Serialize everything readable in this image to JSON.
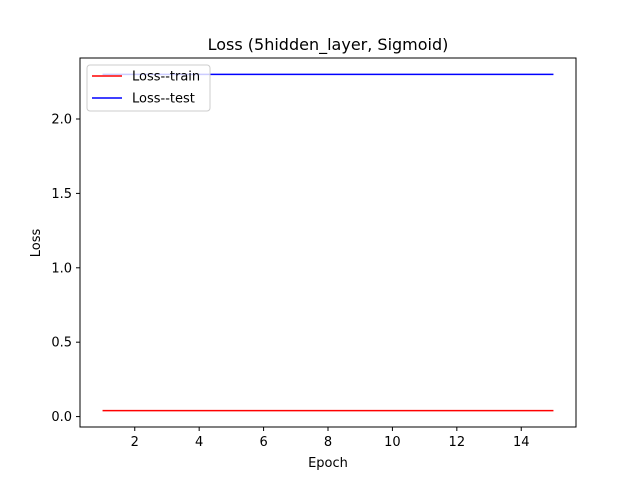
{
  "chart_data": {
    "type": "line",
    "title": "Loss (5hidden_layer, Sigmoid)",
    "xlabel": "Epoch",
    "ylabel": "Loss",
    "xlim": [
      0.3,
      15.7
    ],
    "ylim": [
      -0.07,
      2.41
    ],
    "xticks": [
      2,
      4,
      6,
      8,
      10,
      12,
      14
    ],
    "yticks": [
      0.0,
      0.5,
      1.0,
      1.5,
      2.0
    ],
    "xtick_labels": [
      "2",
      "4",
      "6",
      "8",
      "10",
      "12",
      "14"
    ],
    "ytick_labels": [
      "0.0",
      "0.5",
      "1.0",
      "1.5",
      "2.0"
    ],
    "grid": false,
    "legend_position": "top-left",
    "x": [
      1,
      2,
      3,
      4,
      5,
      6,
      7,
      8,
      9,
      10,
      11,
      12,
      13,
      14,
      15
    ],
    "series": [
      {
        "name": "Loss--train",
        "color": "#ff0000",
        "values": [
          0.04,
          0.04,
          0.04,
          0.04,
          0.04,
          0.04,
          0.04,
          0.04,
          0.04,
          0.04,
          0.04,
          0.04,
          0.04,
          0.04,
          0.04
        ]
      },
      {
        "name": "Loss--test",
        "color": "#0000ff",
        "values": [
          2.3,
          2.3,
          2.3,
          2.3,
          2.3,
          2.3,
          2.3,
          2.3,
          2.3,
          2.3,
          2.3,
          2.3,
          2.3,
          2.3,
          2.3
        ]
      }
    ]
  }
}
